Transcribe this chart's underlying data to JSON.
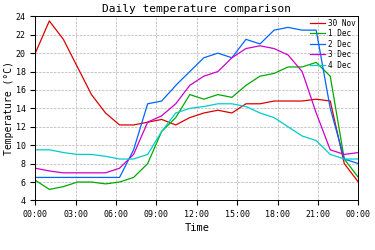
{
  "title": "Daily temperature comparison",
  "xlabel": "Time",
  "ylabel": "Temperature (°C)",
  "ylim": [
    4,
    24
  ],
  "yticks": [
    4,
    6,
    8,
    10,
    12,
    14,
    16,
    18,
    20,
    22,
    24
  ],
  "xtick_labels": [
    "00:00",
    "03:00",
    "06:00",
    "09:00",
    "12:00",
    "15:00",
    "18:00",
    "21:00",
    "00:00"
  ],
  "background_color": "#ffffff",
  "grid_color": "#aaaaaa",
  "series": [
    {
      "label": "30 Nov",
      "color": "#dd0000",
      "values": [
        20.0,
        23.5,
        21.5,
        18.5,
        15.5,
        13.5,
        12.2,
        12.2,
        12.5,
        12.8,
        12.2,
        13.0,
        13.5,
        13.8,
        13.5,
        14.5,
        14.5,
        14.8,
        14.8,
        14.8,
        15.0,
        14.8,
        8.0,
        6.0
      ]
    },
    {
      "label": "1 Dec",
      "color": "#00aa00",
      "values": [
        6.2,
        5.2,
        5.5,
        6.0,
        6.0,
        5.8,
        6.0,
        6.5,
        8.0,
        11.5,
        13.0,
        15.5,
        15.0,
        15.5,
        15.2,
        16.5,
        17.5,
        17.8,
        18.5,
        18.5,
        19.0,
        17.5,
        8.5,
        6.5
      ]
    },
    {
      "label": "2 Dec",
      "color": "#0066ff",
      "values": [
        6.5,
        6.5,
        6.5,
        6.5,
        6.5,
        6.5,
        6.5,
        9.5,
        14.5,
        14.8,
        16.5,
        18.0,
        19.5,
        20.0,
        19.5,
        21.5,
        21.0,
        22.5,
        22.8,
        22.5,
        22.5,
        14.0,
        8.5,
        8.0
      ]
    },
    {
      "label": "3 Dec",
      "color": "#cc00cc",
      "values": [
        7.5,
        7.2,
        7.0,
        7.0,
        7.0,
        7.0,
        7.5,
        9.0,
        12.5,
        13.2,
        14.5,
        16.5,
        17.5,
        18.0,
        19.5,
        20.5,
        20.8,
        20.5,
        19.8,
        18.0,
        13.5,
        9.5,
        9.0,
        9.2
      ]
    },
    {
      "label": "4 Dec",
      "color": "#00cccc",
      "values": [
        9.5,
        9.5,
        9.2,
        9.0,
        9.0,
        8.8,
        8.5,
        8.5,
        9.0,
        11.5,
        13.5,
        14.0,
        14.2,
        14.5,
        14.5,
        14.2,
        13.5,
        13.0,
        12.0,
        11.0,
        10.5,
        9.0,
        8.5,
        8.5
      ]
    }
  ]
}
